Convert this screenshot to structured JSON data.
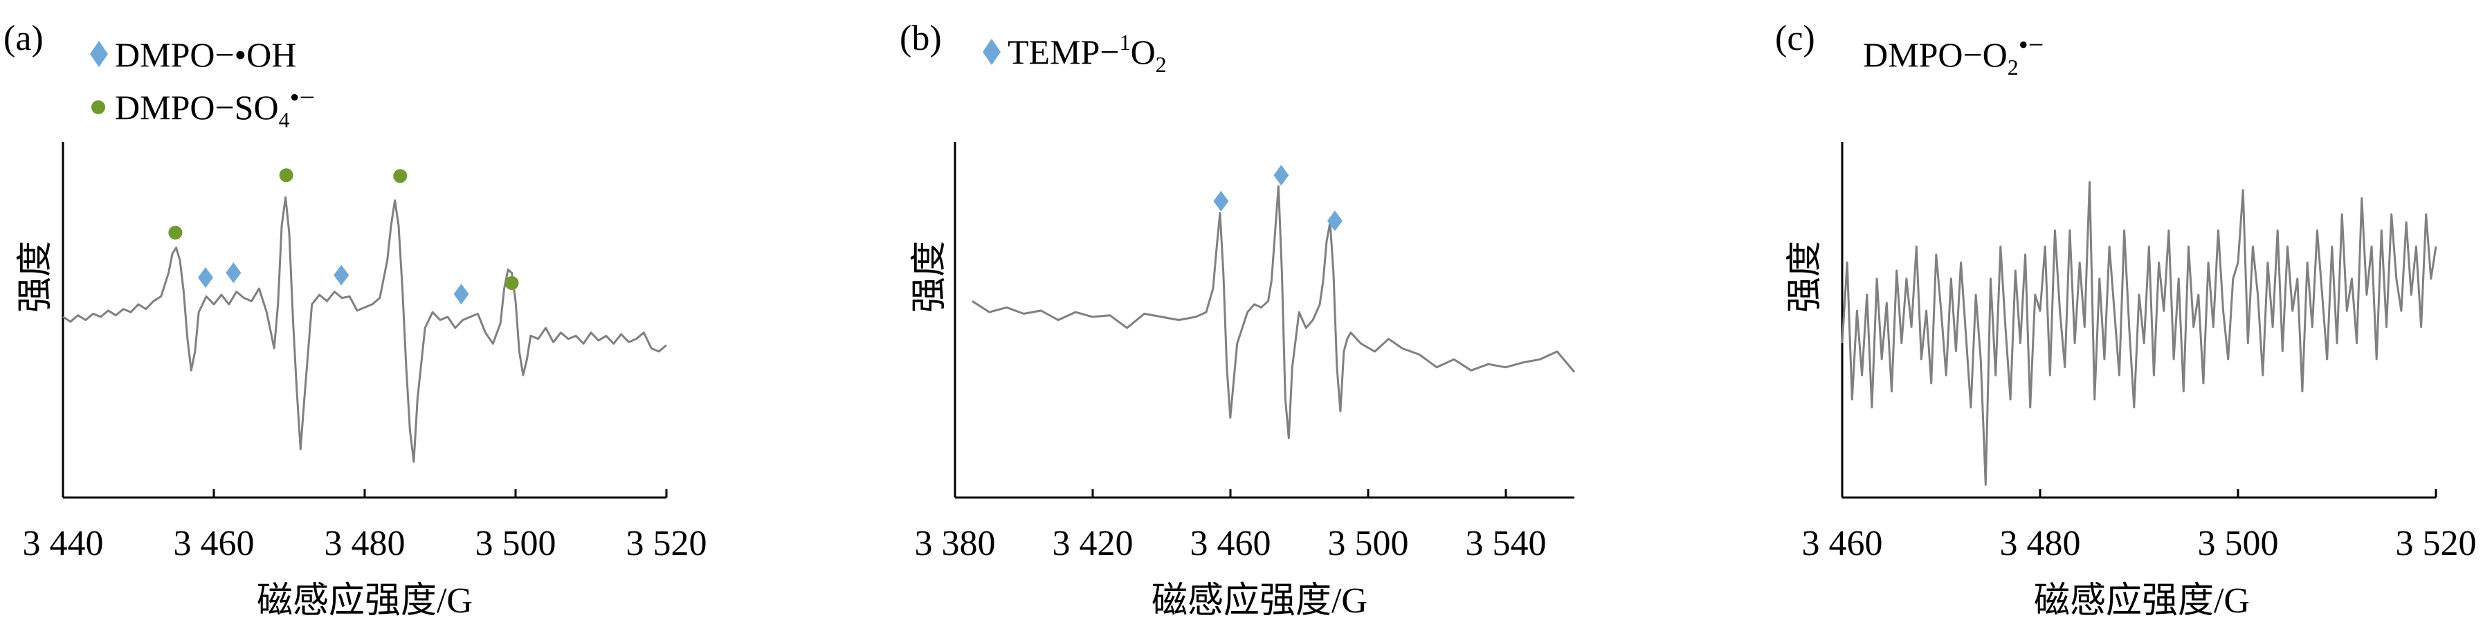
{
  "colors": {
    "trace": "#808080",
    "axis": "#000000",
    "diamond": "#6fa8d8",
    "dot": "#6f9a30"
  },
  "chart_data": [
    {
      "type": "line",
      "panel_label": "(a)",
      "xlabel": "磁感应强度/G",
      "ylabel": "强度",
      "xlim": [
        3440,
        3520
      ],
      "xticks": [
        3440,
        3460,
        3480,
        3500,
        3520
      ],
      "xtick_labels": [
        "3 440",
        "3 460",
        "3 480",
        "3 500",
        "3 520"
      ],
      "ylim": [
        -1,
        1
      ],
      "grid": false,
      "legend": {
        "position": "top-left",
        "entries": [
          {
            "marker": "diamond",
            "label": "DMPO−•OH"
          },
          {
            "marker": "dot",
            "label": "DMPO−SO4•−"
          }
        ]
      },
      "markers": [
        {
          "marker": "dot",
          "x": 3454.9,
          "y": 0.555
        },
        {
          "marker": "diamond",
          "x": 3458.9,
          "y": 0.27
        },
        {
          "marker": "diamond",
          "x": 3462.6,
          "y": 0.3
        },
        {
          "marker": "dot",
          "x": 3469.6,
          "y": 0.92
        },
        {
          "marker": "diamond",
          "x": 3476.9,
          "y": 0.285
        },
        {
          "marker": "dot",
          "x": 3484.7,
          "y": 0.915
        },
        {
          "marker": "diamond",
          "x": 3492.8,
          "y": 0.165
        },
        {
          "marker": "dot",
          "x": 3499.5,
          "y": 0.235
        }
      ],
      "series": [
        {
          "x": [
            3440,
            3441,
            3442,
            3443,
            3444,
            3445,
            3446,
            3447,
            3448,
            3449,
            3450,
            3451,
            3452,
            3453,
            3454,
            3454.5,
            3455,
            3455.5,
            3456,
            3456.5,
            3457,
            3457.5,
            3458,
            3459,
            3460,
            3461,
            3462,
            3463,
            3464,
            3465,
            3466,
            3467,
            3468,
            3468.5,
            3469,
            3469.5,
            3470,
            3470.5,
            3471,
            3471.5,
            3472,
            3473,
            3474,
            3475,
            3476,
            3477,
            3478,
            3479,
            3480,
            3481,
            3482,
            3483,
            3483.5,
            3484,
            3484.5,
            3485,
            3485.5,
            3486,
            3486.5,
            3487,
            3488,
            3489,
            3490,
            3491,
            3492,
            3493,
            3494,
            3495,
            3496,
            3497,
            3498,
            3498.5,
            3499,
            3499.5,
            3500,
            3500.5,
            3501,
            3501.5,
            3502,
            3503,
            3504,
            3505,
            3506,
            3507,
            3508,
            3509,
            3510,
            3511,
            3512,
            3513,
            3514,
            3515,
            3516,
            3517,
            3518,
            3519,
            3520
          ],
          "y": [
            0.02,
            -0.01,
            0.03,
            0.0,
            0.04,
            0.02,
            0.06,
            0.03,
            0.07,
            0.05,
            0.1,
            0.07,
            0.12,
            0.15,
            0.3,
            0.42,
            0.46,
            0.38,
            0.18,
            -0.12,
            -0.32,
            -0.2,
            0.05,
            0.15,
            0.1,
            0.16,
            0.1,
            0.18,
            0.14,
            0.12,
            0.2,
            0.05,
            -0.18,
            0.1,
            0.6,
            0.78,
            0.55,
            0.0,
            -0.45,
            -0.82,
            -0.5,
            0.1,
            0.16,
            0.12,
            0.18,
            0.14,
            0.15,
            0.06,
            0.08,
            0.1,
            0.14,
            0.38,
            0.6,
            0.76,
            0.6,
            0.2,
            -0.3,
            -0.7,
            -0.9,
            -0.5,
            -0.05,
            0.05,
            0.0,
            0.02,
            -0.05,
            0.0,
            0.02,
            0.04,
            -0.08,
            -0.15,
            -0.02,
            0.2,
            0.32,
            0.3,
            0.12,
            -0.2,
            -0.35,
            -0.25,
            -0.1,
            -0.12,
            -0.05,
            -0.14,
            -0.08,
            -0.12,
            -0.1,
            -0.15,
            -0.08,
            -0.13,
            -0.1,
            -0.15,
            -0.09,
            -0.14,
            -0.12,
            -0.08,
            -0.18,
            -0.2,
            -0.16
          ]
        }
      ]
    },
    {
      "type": "line",
      "panel_label": "(b)",
      "xlabel": "磁感应强度/G",
      "ylabel": "强度",
      "xlim": [
        3380,
        3560
      ],
      "xticks": [
        3380,
        3420,
        3460,
        3500,
        3540
      ],
      "xtick_labels": [
        "3 380",
        "3 420",
        "3 460",
        "3 500",
        "3 540"
      ],
      "ylim": [
        -1,
        1
      ],
      "grid": false,
      "legend": {
        "position": "top-left",
        "entries": [
          {
            "marker": "diamond",
            "label": "TEMP−1O2"
          }
        ]
      },
      "markers": [
        {
          "marker": "diamond",
          "x": 3457.3,
          "y": 0.755
        },
        {
          "marker": "diamond",
          "x": 3474.8,
          "y": 0.92
        },
        {
          "marker": "diamond",
          "x": 3490.4,
          "y": 0.63
        }
      ],
      "series": [
        {
          "x": [
            3385,
            3390,
            3395,
            3400,
            3405,
            3410,
            3415,
            3420,
            3425,
            3430,
            3435,
            3440,
            3445,
            3450,
            3453,
            3455,
            3456,
            3457,
            3458,
            3459,
            3460,
            3462,
            3465,
            3467,
            3469,
            3471,
            3472,
            3473,
            3474,
            3475,
            3476,
            3477,
            3478,
            3480,
            3482,
            3484,
            3486,
            3487,
            3488,
            3489,
            3490,
            3491,
            3492,
            3493,
            3494,
            3495,
            3498,
            3502,
            3506,
            3510,
            3515,
            3520,
            3525,
            3530,
            3535,
            3540,
            3545,
            3550,
            3555,
            3560
          ],
          "y": [
            0.12,
            0.05,
            0.08,
            0.04,
            0.06,
            0.0,
            0.05,
            0.02,
            0.03,
            -0.05,
            0.04,
            0.02,
            0.0,
            0.02,
            0.05,
            0.2,
            0.45,
            0.68,
            0.3,
            -0.3,
            -0.62,
            -0.15,
            0.05,
            0.1,
            0.08,
            0.12,
            0.25,
            0.55,
            0.85,
            0.3,
            -0.5,
            -0.75,
            -0.3,
            0.05,
            -0.05,
            0.0,
            0.1,
            0.25,
            0.5,
            0.62,
            0.3,
            -0.3,
            -0.58,
            -0.2,
            -0.12,
            -0.08,
            -0.15,
            -0.2,
            -0.12,
            -0.18,
            -0.22,
            -0.3,
            -0.25,
            -0.32,
            -0.28,
            -0.3,
            -0.27,
            -0.25,
            -0.2,
            -0.33
          ]
        }
      ]
    },
    {
      "type": "line",
      "panel_label": "(c)",
      "xlabel": "磁感应强度/G",
      "ylabel": "强度",
      "xlim": [
        3460,
        3520
      ],
      "xticks": [
        3460,
        3480,
        3500,
        3520
      ],
      "xtick_labels": [
        "3 460",
        "3 480",
        "3 500",
        "3 520"
      ],
      "ylim": [
        -1,
        1
      ],
      "grid": false,
      "legend": {
        "position": "top-left",
        "entries": [
          {
            "marker": "none",
            "label": "DMPO−O2•−"
          }
        ]
      },
      "markers": [],
      "series": [
        {
          "x": [
            3460,
            3460.5,
            3461,
            3461.5,
            3462,
            3462.5,
            3463,
            3463.5,
            3464,
            3464.5,
            3465,
            3465.5,
            3466,
            3466.5,
            3467,
            3467.5,
            3468,
            3468.5,
            3469,
            3469.5,
            3470,
            3470.5,
            3471,
            3471.5,
            3472,
            3472.5,
            3473,
            3473.5,
            3474,
            3474.5,
            3475,
            3475.5,
            3476,
            3476.5,
            3477,
            3477.5,
            3478,
            3478.5,
            3479,
            3479.5,
            3480,
            3480.5,
            3481,
            3481.5,
            3482,
            3482.5,
            3483,
            3483.5,
            3484,
            3484.5,
            3485,
            3485.5,
            3486,
            3486.5,
            3487,
            3487.5,
            3488,
            3488.5,
            3489,
            3489.5,
            3490,
            3490.5,
            3491,
            3491.5,
            3492,
            3492.5,
            3493,
            3493.5,
            3494,
            3494.5,
            3495,
            3495.5,
            3496,
            3496.5,
            3497,
            3497.5,
            3498,
            3498.5,
            3499,
            3499.5,
            3500,
            3500.5,
            3501,
            3501.5,
            3502,
            3502.5,
            3503,
            3503.5,
            3504,
            3504.5,
            3505,
            3505.5,
            3506,
            3506.5,
            3507,
            3507.5,
            3508,
            3508.5,
            3509,
            3509.5,
            3510,
            3510.5,
            3511,
            3511.5,
            3512,
            3512.5,
            3513,
            3513.5,
            3514,
            3514.5,
            3515,
            3515.5,
            3516,
            3516.5,
            3517,
            3517.5,
            3518,
            3518.5,
            3519,
            3519.5,
            3520
          ],
          "y": [
            -0.1,
            0.4,
            -0.45,
            0.1,
            -0.3,
            0.2,
            -0.5,
            0.3,
            -0.2,
            0.15,
            -0.4,
            0.35,
            -0.1,
            0.3,
            0.0,
            0.5,
            -0.2,
            0.1,
            -0.35,
            0.45,
            0.1,
            -0.3,
            0.3,
            -0.15,
            0.4,
            -0.05,
            -0.5,
            0.2,
            -0.2,
            -0.98,
            0.3,
            -0.3,
            0.5,
            0.0,
            -0.45,
            0.35,
            -0.1,
            0.45,
            -0.5,
            0.2,
            0.1,
            0.5,
            -0.3,
            0.6,
            0.1,
            -0.25,
            0.6,
            -0.1,
            0.4,
            0.0,
            0.9,
            -0.45,
            0.3,
            -0.2,
            0.5,
            0.1,
            -0.3,
            0.6,
            0.0,
            -0.5,
            0.2,
            -0.1,
            0.5,
            -0.3,
            0.4,
            0.1,
            0.6,
            -0.2,
            0.3,
            -0.4,
            0.5,
            0.0,
            0.2,
            -0.35,
            0.4,
            0.0,
            0.6,
            0.1,
            -0.2,
            0.3,
            0.4,
            0.85,
            -0.1,
            0.5,
            0.2,
            -0.3,
            0.4,
            0.0,
            0.6,
            -0.15,
            0.5,
            0.1,
            0.3,
            -0.4,
            0.4,
            0.0,
            0.6,
            0.2,
            -0.2,
            0.5,
            -0.1,
            0.7,
            0.1,
            0.3,
            -0.1,
            0.8,
            0.2,
            0.5,
            -0.2,
            0.6,
            0.0,
            0.7,
            0.3,
            0.1,
            0.65,
            0.2,
            0.5,
            0.0,
            0.7,
            0.3,
            0.5
          ]
        }
      ]
    }
  ]
}
